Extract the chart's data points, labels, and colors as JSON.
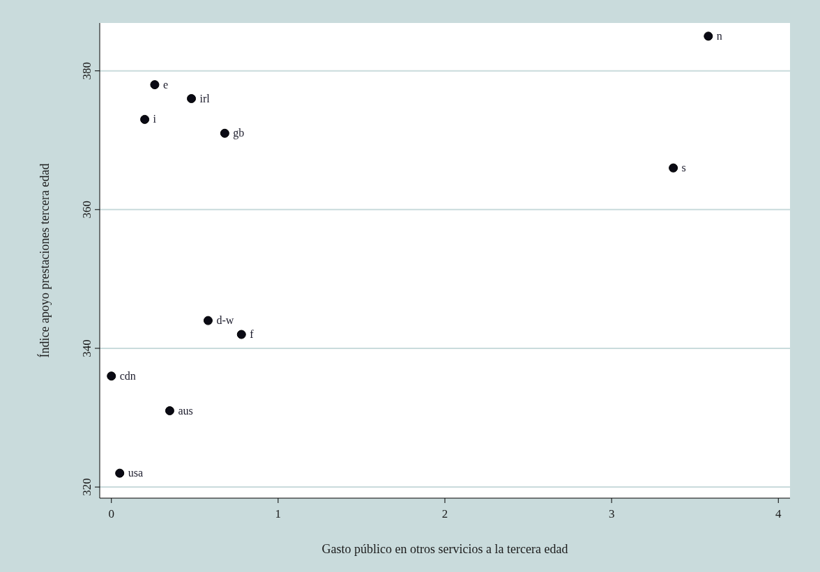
{
  "chart_data": {
    "type": "scatter",
    "xlabel": "Gasto público en otros servicios a la tercera edad",
    "ylabel": "Índice apoyo prestaciones tercera edad",
    "x": [
      3.58,
      0.26,
      0.48,
      0.2,
      0.68,
      3.37,
      0.58,
      0.78,
      0,
      0.35,
      0.05
    ],
    "series": [
      {
        "color": "#0a0a14",
        "values": [
          385,
          378,
          376,
          373,
          371,
          366,
          344,
          342,
          336,
          331,
          322
        ]
      }
    ],
    "annotations": [
      {
        "text": "n",
        "x": 3.58,
        "y": 385
      },
      {
        "text": "e",
        "x": 0.26,
        "y": 378
      },
      {
        "text": "irl",
        "x": 0.48,
        "y": 376
      },
      {
        "text": "i",
        "x": 0.2,
        "y": 373
      },
      {
        "text": "gb",
        "x": 0.68,
        "y": 371
      },
      {
        "text": "s",
        "x": 3.37,
        "y": 366
      },
      {
        "text": "d-w",
        "x": 0.58,
        "y": 344
      },
      {
        "text": "f",
        "x": 0.78,
        "y": 342
      },
      {
        "text": "cdn",
        "x": 0,
        "y": 336
      },
      {
        "text": "aus",
        "x": 0.35,
        "y": 331
      },
      {
        "text": "usa",
        "x": 0.05,
        "y": 322
      }
    ],
    "xlim": [
      -0.07,
      4.07
    ],
    "ylim": [
      318.4,
      386.9
    ],
    "xticks": [
      0,
      1,
      2,
      3,
      4
    ],
    "yticks": [
      320,
      340,
      360,
      380
    ],
    "grid": "y",
    "marker": "circle"
  }
}
